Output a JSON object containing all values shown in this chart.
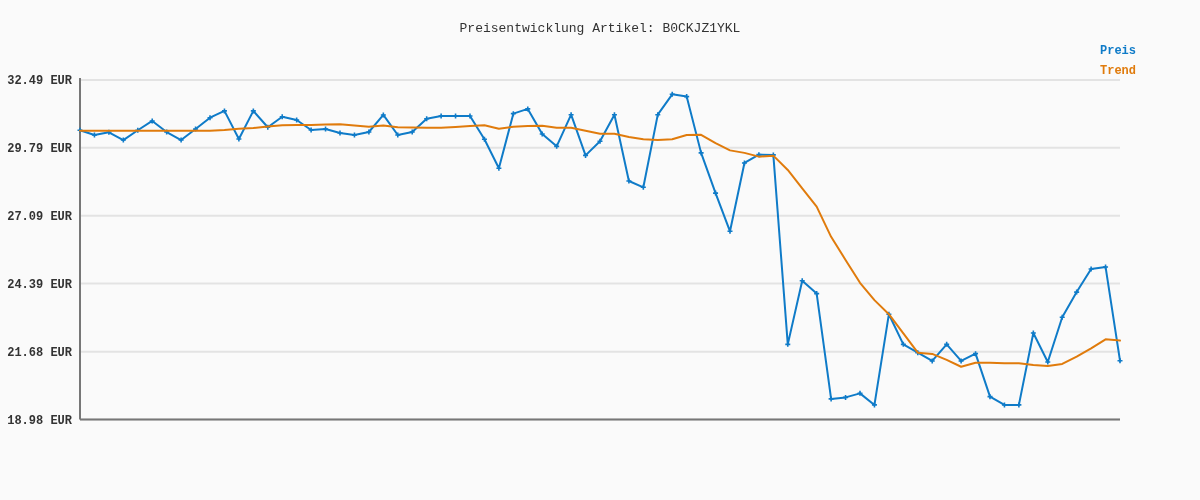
{
  "chart_data": {
    "type": "line",
    "title": "Preisentwicklung Artikel: B0CKJZ1YKL",
    "categories": [
      null,
      null,
      null,
      null,
      null,
      null,
      null,
      null,
      null,
      null,
      null,
      null,
      null,
      null,
      null,
      null,
      null,
      null,
      null,
      null,
      null,
      null,
      null,
      null,
      null,
      null,
      null,
      null,
      null,
      null,
      null,
      null,
      null,
      null,
      null,
      null,
      null,
      null,
      null,
      null,
      null,
      null,
      null,
      null,
      null,
      null,
      null,
      null,
      null,
      null,
      null,
      null,
      null,
      null,
      null,
      null,
      null,
      null,
      null,
      null,
      null,
      null,
      null,
      null,
      null,
      null,
      null,
      null,
      null,
      null,
      null,
      null,
      null
    ],
    "series": [
      {
        "name": "Preis",
        "color": "#0f7bc8",
        "marker": "cross",
        "values": [
          30.49,
          30.3,
          30.41,
          30.1,
          30.49,
          30.86,
          30.42,
          30.1,
          30.54,
          30.99,
          31.26,
          30.14,
          31.26,
          30.61,
          31.03,
          30.9,
          30.5,
          30.54,
          30.38,
          30.3,
          30.42,
          31.1,
          30.3,
          30.42,
          30.95,
          31.06,
          31.06,
          31.06,
          30.13,
          28.98,
          31.15,
          31.34,
          30.34,
          29.85,
          31.11,
          29.49,
          30.05,
          31.11,
          28.47,
          28.22,
          31.11,
          31.92,
          31.83,
          29.59,
          27.99,
          26.47,
          29.19,
          29.52,
          29.51,
          21.97,
          24.5,
          23.99,
          19.8,
          19.86,
          20.02,
          19.56,
          23.17,
          21.97,
          21.64,
          21.31,
          21.97,
          21.31,
          21.6,
          19.89,
          19.56,
          19.56,
          22.42,
          21.27,
          23.05,
          24.05,
          24.97,
          25.05,
          21.32
        ]
      },
      {
        "name": "Trend",
        "color": "#e07b0c",
        "marker": "none",
        "values": [
          30.47,
          30.47,
          30.47,
          30.47,
          30.47,
          30.47,
          30.47,
          30.47,
          30.47,
          30.47,
          30.5,
          30.55,
          30.58,
          30.64,
          30.69,
          30.7,
          30.7,
          30.72,
          30.73,
          30.68,
          30.63,
          30.68,
          30.61,
          30.6,
          30.59,
          30.59,
          30.62,
          30.66,
          30.69,
          30.55,
          30.63,
          30.66,
          30.67,
          30.59,
          30.59,
          30.47,
          30.35,
          30.35,
          30.22,
          30.13,
          30.1,
          30.13,
          30.3,
          30.31,
          29.98,
          29.69,
          29.59,
          29.44,
          29.48,
          28.91,
          28.18,
          27.45,
          26.25,
          25.33,
          24.42,
          23.73,
          23.17,
          22.41,
          21.64,
          21.59,
          21.35,
          21.08,
          21.24,
          21.24,
          21.22,
          21.22,
          21.15,
          21.11,
          21.19,
          21.48,
          21.81,
          22.17,
          22.12
        ]
      }
    ],
    "ylim": [
      18.98,
      32.49
    ],
    "yticks": [
      {
        "value": 18.98,
        "label": "18.98 EUR"
      },
      {
        "value": 21.68,
        "label": "21.68 EUR"
      },
      {
        "value": 24.39,
        "label": "24.39 EUR"
      },
      {
        "value": 27.09,
        "label": "27.09 EUR"
      },
      {
        "value": 29.79,
        "label": "29.79 EUR"
      },
      {
        "value": 32.49,
        "label": "32.49 EUR"
      }
    ],
    "grid": "y",
    "legend": "top right",
    "tick_labels": "y",
    "line_style": "solid"
  }
}
